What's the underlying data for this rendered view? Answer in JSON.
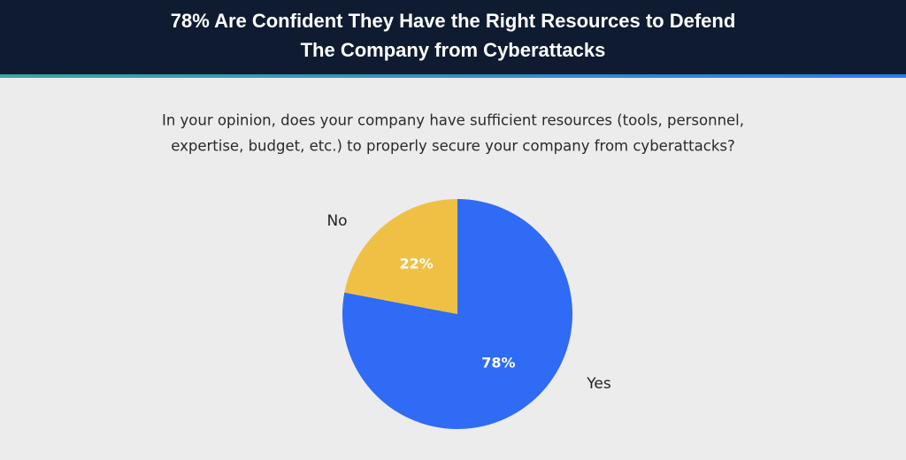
{
  "chart_data": {
    "type": "pie",
    "title": [
      "78% Are Confident They Have the Right Resources to Defend",
      "The Company from Cyberattacks"
    ],
    "subtitle": [
      "In your opinion, does your company have sufficient resources (tools, personnel,",
      "expertise, budget, etc.) to properly secure your company from cyberattacks?"
    ],
    "categories": [
      "Yes",
      "No"
    ],
    "values": [
      78,
      22
    ],
    "value_labels": [
      "78%",
      "22%"
    ],
    "colors": [
      "#2f6bf5",
      "#f0c044"
    ]
  }
}
